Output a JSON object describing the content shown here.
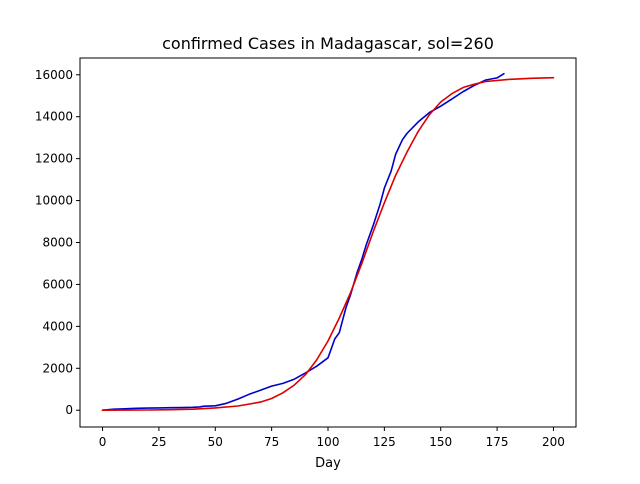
{
  "chart_data": {
    "type": "line",
    "title": "confirmed Cases in Madagascar, sol=260",
    "xlabel": "Day",
    "ylabel": "",
    "xlim": [
      -10,
      210
    ],
    "ylim": [
      -800,
      16800
    ],
    "xticks": [
      0,
      25,
      50,
      75,
      100,
      125,
      150,
      175,
      200
    ],
    "yticks": [
      0,
      2000,
      4000,
      6000,
      8000,
      10000,
      12000,
      14000,
      16000
    ],
    "grid": false,
    "series": [
      {
        "color": "#0000cc",
        "x": [
          0,
          5,
          10,
          15,
          20,
          25,
          30,
          35,
          40,
          43,
          45,
          50,
          55,
          60,
          65,
          70,
          75,
          80,
          85,
          90,
          95,
          100,
          103,
          105,
          108,
          110,
          113,
          115,
          117,
          120,
          123,
          125,
          128,
          130,
          133,
          135,
          140,
          145,
          150,
          155,
          160,
          165,
          170,
          175,
          178
        ],
        "y": [
          0,
          50,
          70,
          90,
          100,
          110,
          120,
          125,
          140,
          160,
          190,
          210,
          330,
          530,
          760,
          950,
          1150,
          1280,
          1480,
          1780,
          2100,
          2500,
          3400,
          3700,
          4900,
          5500,
          6600,
          7200,
          7900,
          8800,
          9800,
          10600,
          11400,
          12200,
          12900,
          13200,
          13750,
          14200,
          14500,
          14850,
          15200,
          15500,
          15750,
          15850,
          16050
        ]
      },
      {
        "color": "#dd0000",
        "x": [
          0,
          10,
          20,
          30,
          40,
          50,
          60,
          70,
          75,
          80,
          85,
          90,
          95,
          100,
          105,
          110,
          115,
          120,
          125,
          130,
          135,
          140,
          145,
          150,
          155,
          160,
          165,
          170,
          180,
          190,
          200
        ],
        "y": [
          0,
          5,
          10,
          25,
          50,
          110,
          200,
          390,
          560,
          830,
          1200,
          1700,
          2400,
          3300,
          4400,
          5600,
          7000,
          8500,
          9900,
          11200,
          12300,
          13300,
          14100,
          14700,
          15100,
          15400,
          15550,
          15680,
          15780,
          15830,
          15860
        ]
      }
    ]
  }
}
